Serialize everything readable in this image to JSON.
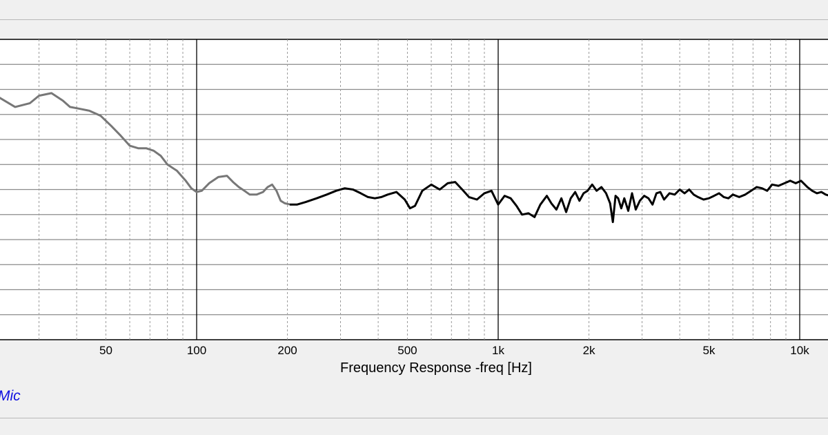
{
  "chart_data": {
    "type": "line",
    "xscale": "log",
    "xlim": [
      18,
      14000
    ],
    "ylim": [
      -6,
      6
    ],
    "grid": true,
    "xlabel": "Frequency Response -freq [Hz]",
    "ylabel": "",
    "x_ticks": [
      {
        "value": 50,
        "label": "50"
      },
      {
        "value": 100,
        "label": "100"
      },
      {
        "value": 200,
        "label": "200"
      },
      {
        "value": 500,
        "label": "500"
      },
      {
        "value": 1000,
        "label": "1k"
      },
      {
        "value": 2000,
        "label": "2k"
      },
      {
        "value": 5000,
        "label": "5k"
      },
      {
        "value": 10000,
        "label": "10k"
      }
    ],
    "series": [
      {
        "color": "#777777",
        "x": [
          18,
          19.5,
          22,
          25,
          28,
          30,
          33,
          36,
          38,
          40,
          44,
          48,
          52,
          56,
          60,
          64,
          68,
          72,
          76,
          80,
          86,
          92,
          96,
          100,
          104,
          110,
          118,
          126,
          132,
          138,
          144,
          150,
          158,
          166,
          172,
          178,
          184,
          190,
          196,
          205
        ],
        "y": [
          3.95,
          4.0,
          3.7,
          3.3,
          3.45,
          3.75,
          3.85,
          3.55,
          3.3,
          3.25,
          3.15,
          2.95,
          2.55,
          2.15,
          1.75,
          1.65,
          1.65,
          1.55,
          1.35,
          1.0,
          0.75,
          0.35,
          0.05,
          -0.1,
          -0.05,
          0.25,
          0.5,
          0.55,
          0.3,
          0.1,
          -0.05,
          -0.2,
          -0.2,
          -0.1,
          0.1,
          0.2,
          -0.05,
          -0.45,
          -0.55,
          -0.6
        ]
      },
      {
        "color": "#000000",
        "x": [
          205,
          215,
          230,
          250,
          270,
          290,
          310,
          330,
          350,
          370,
          390,
          410,
          430,
          460,
          490,
          510,
          530,
          560,
          600,
          640,
          680,
          720,
          760,
          800,
          850,
          900,
          950,
          1000,
          1050,
          1100,
          1150,
          1200,
          1260,
          1320,
          1380,
          1450,
          1500,
          1560,
          1620,
          1680,
          1740,
          1800,
          1860,
          1920,
          1980,
          2050,
          2120,
          2200,
          2280,
          2350,
          2400,
          2450,
          2500,
          2560,
          2620,
          2700,
          2780,
          2860,
          2950,
          3050,
          3150,
          3250,
          3350,
          3450,
          3550,
          3700,
          3850,
          4000,
          4150,
          4300,
          4450,
          4600,
          4800,
          5000,
          5200,
          5400,
          5600,
          5800,
          6000,
          6300,
          6600,
          6900,
          7200,
          7500,
          7800,
          8100,
          8500,
          8900,
          9300,
          9700,
          10100,
          10600,
          11000,
          11400,
          11800,
          12200,
          12600,
          13000,
          13500,
          14000
        ],
        "y": [
          -0.6,
          -0.6,
          -0.5,
          -0.35,
          -0.2,
          -0.05,
          0.05,
          0.0,
          -0.15,
          -0.3,
          -0.35,
          -0.3,
          -0.2,
          -0.1,
          -0.4,
          -0.75,
          -0.65,
          -0.05,
          0.2,
          0.0,
          0.25,
          0.3,
          0.0,
          -0.3,
          -0.4,
          -0.15,
          -0.05,
          -0.6,
          -0.25,
          -0.35,
          -0.65,
          -1.0,
          -0.95,
          -1.1,
          -0.6,
          -0.25,
          -0.55,
          -0.8,
          -0.35,
          -0.9,
          -0.35,
          -0.1,
          -0.45,
          -0.15,
          -0.05,
          0.2,
          -0.05,
          0.1,
          -0.15,
          -0.55,
          -1.3,
          -0.25,
          -0.35,
          -0.75,
          -0.35,
          -0.85,
          -0.15,
          -0.8,
          -0.45,
          -0.25,
          -0.35,
          -0.6,
          -0.15,
          -0.1,
          -0.4,
          -0.15,
          -0.2,
          0.0,
          -0.15,
          0.0,
          -0.2,
          -0.3,
          -0.4,
          -0.35,
          -0.25,
          -0.15,
          -0.3,
          -0.35,
          -0.2,
          -0.3,
          -0.2,
          -0.05,
          0.1,
          0.05,
          -0.05,
          0.2,
          0.15,
          0.25,
          0.35,
          0.25,
          0.35,
          0.1,
          -0.05,
          -0.15,
          -0.1,
          -0.2,
          -0.25,
          -0.15,
          -0.35,
          -0.45
        ]
      }
    ]
  },
  "legend": {
    "mic_label": "Mic",
    "color": "#1010e0"
  }
}
